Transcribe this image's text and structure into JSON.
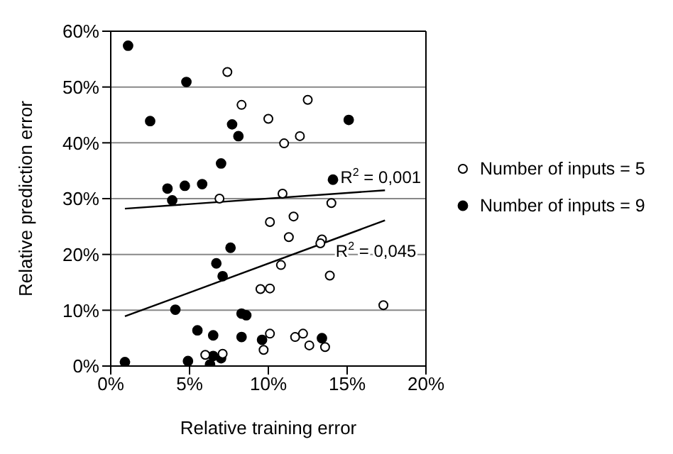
{
  "chart_data": {
    "type": "scatter",
    "xlabel": "Relative training error",
    "ylabel": "Relative prediction error",
    "xlim": [
      0,
      20
    ],
    "xticks": [
      {
        "value": 0,
        "label": "0%"
      },
      {
        "value": 5,
        "label": "5%"
      },
      {
        "value": 10,
        "label": "10%"
      },
      {
        "value": 15,
        "label": "15%"
      },
      {
        "value": 20,
        "label": "20%"
      }
    ],
    "ylim": [
      0,
      60
    ],
    "yticks": [
      {
        "value": 0,
        "label": "0%"
      },
      {
        "value": 10,
        "label": "10%"
      },
      {
        "value": 20,
        "label": "20%"
      },
      {
        "value": 30,
        "label": "30%"
      },
      {
        "value": 40,
        "label": "40%"
      },
      {
        "value": 50,
        "label": "50%"
      },
      {
        "value": 60,
        "label": "60%"
      }
    ],
    "grid": "y",
    "legend": "right",
    "marker": "circle",
    "series": [
      {
        "name": "Number of inputs = 5",
        "color": "#000000",
        "x": [
          7.4,
          8.3,
          10.0,
          6.9,
          10.1,
          9.5,
          10.1,
          10.1,
          9.7,
          6.0,
          7.1,
          12.5,
          11.0,
          12.0,
          10.9,
          14.0,
          11.6,
          11.3,
          13.4,
          13.3,
          10.8,
          13.9,
          17.3,
          11.7,
          12.2,
          12.6,
          13.6
        ],
        "values": [
          52.7,
          46.8,
          44.3,
          30.0,
          25.8,
          13.8,
          13.9,
          5.8,
          2.9,
          2.0,
          2.2,
          47.7,
          39.9,
          41.2,
          30.9,
          29.2,
          26.8,
          23.1,
          22.7,
          22.0,
          18.1,
          16.2,
          10.9,
          5.2,
          5.8,
          3.7,
          3.4
        ]
      },
      {
        "name": "Number of inputs = 9",
        "color": "#000000",
        "x": [
          1.1,
          2.5,
          4.8,
          7.7,
          8.1,
          7.0,
          3.6,
          4.7,
          5.8,
          3.9,
          7.6,
          6.7,
          7.1,
          4.1,
          5.5,
          6.5,
          8.3,
          8.6,
          8.3,
          0.9,
          4.9,
          6.3,
          6.5,
          7.0,
          9.6,
          15.1,
          14.1,
          13.4
        ],
        "values": [
          57.4,
          43.9,
          50.9,
          43.3,
          41.2,
          36.3,
          31.8,
          32.3,
          32.6,
          29.7,
          21.2,
          18.4,
          16.1,
          10.1,
          6.4,
          5.5,
          9.4,
          9.1,
          5.2,
          0.7,
          0.9,
          0.3,
          1.8,
          1.4,
          4.7,
          44.1,
          33.4,
          5.0
        ]
      },
      {
        "type": "line",
        "marker": "none",
        "color": "#000000",
        "x": [
          0.9,
          17.4
        ],
        "values": [
          28.2,
          31.5
        ]
      },
      {
        "type": "line",
        "marker": "none",
        "color": "#000000",
        "x": [
          0.9,
          17.4
        ],
        "values": [
          8.9,
          26.1
        ]
      }
    ],
    "annotations": [
      {
        "text": "R$^{2}$ = 0,001",
        "x": 14.3,
        "y": 33.5
      },
      {
        "text": "R$^{2}$ = 0,045",
        "x": 14.0,
        "y": 22.6
      }
    ]
  }
}
